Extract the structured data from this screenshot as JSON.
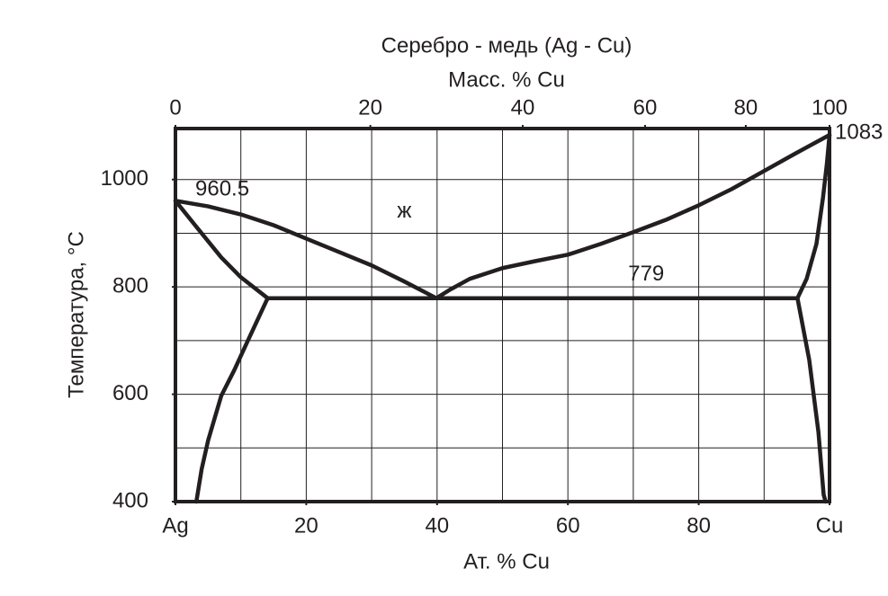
{
  "chart_data": {
    "type": "line",
    "title": "Серебро - медь (Ag - Cu)",
    "x2label": "Масс. % Cu",
    "xlabel": "Ат. % Cu",
    "ylabel": "Температура,  °C",
    "xlim": [
      0,
      100
    ],
    "ylim": [
      400,
      1095
    ],
    "xticks": [
      {
        "value": 0,
        "label": "Ag"
      },
      20,
      40,
      60,
      80,
      {
        "value": 100,
        "label": "Cu"
      }
    ],
    "x2ticks": [
      {
        "value": 0,
        "label": "0"
      },
      {
        "value": 29.8,
        "label": "20"
      },
      {
        "value": 53.1,
        "label": "40"
      },
      {
        "value": 71.8,
        "label": "60"
      },
      {
        "value": 87.2,
        "label": "80"
      },
      {
        "value": 100,
        "label": "100"
      }
    ],
    "yticks": [
      400,
      600,
      800,
      1000
    ],
    "x_grid": [
      10,
      20,
      30,
      40,
      50,
      60,
      70,
      80,
      90
    ],
    "y_grid": [
      500,
      600,
      700,
      800,
      900,
      1000
    ],
    "grid": true,
    "annotations": [
      {
        "text": "960.5",
        "x": 0,
        "y": 960.5
      },
      {
        "text": "ж",
        "x": 35,
        "y": 940
      },
      {
        "text": "779",
        "x": 75,
        "y": 779
      },
      {
        "text": "1083",
        "x": 100,
        "y": 1083
      }
    ],
    "series": [
      {
        "color": "#231f20",
        "x": [
          0,
          5,
          10,
          15,
          20,
          25,
          30,
          35,
          39.9
        ],
        "values": [
          960.5,
          950,
          935,
          915,
          890,
          865,
          840,
          810,
          779
        ]
      },
      {
        "color": "#231f20",
        "x": [
          39.9,
          42,
          45,
          50,
          55,
          60,
          65,
          70,
          75,
          80,
          85,
          90,
          95,
          100
        ],
        "values": [
          779,
          795,
          815,
          835,
          848,
          860,
          880,
          902,
          925,
          952,
          982,
          1016,
          1050,
          1083
        ]
      },
      {
        "color": "#231f20",
        "x": [
          0,
          3,
          7,
          10,
          14.1
        ],
        "values": [
          960.5,
          915,
          855,
          818,
          779
        ]
      },
      {
        "color": "#231f20",
        "x": [
          14.1,
          11,
          9,
          7,
          5,
          4,
          3.2
        ],
        "values": [
          779,
          698,
          645,
          597,
          514,
          460,
          400
        ]
      },
      {
        "color": "#231f20",
        "x": [
          14.1,
          95.1
        ],
        "values": [
          779,
          779
        ]
      },
      {
        "color": "#231f20",
        "x": [
          95.1,
          96.5,
          98,
          99,
          99.6,
          100
        ],
        "values": [
          779,
          815,
          880,
          966,
          1030,
          1083
        ]
      },
      {
        "color": "#231f20",
        "x": [
          95.1,
          96.9,
          98.3,
          99.1,
          99.4
        ],
        "values": [
          779,
          664,
          530,
          413,
          400
        ]
      }
    ]
  }
}
